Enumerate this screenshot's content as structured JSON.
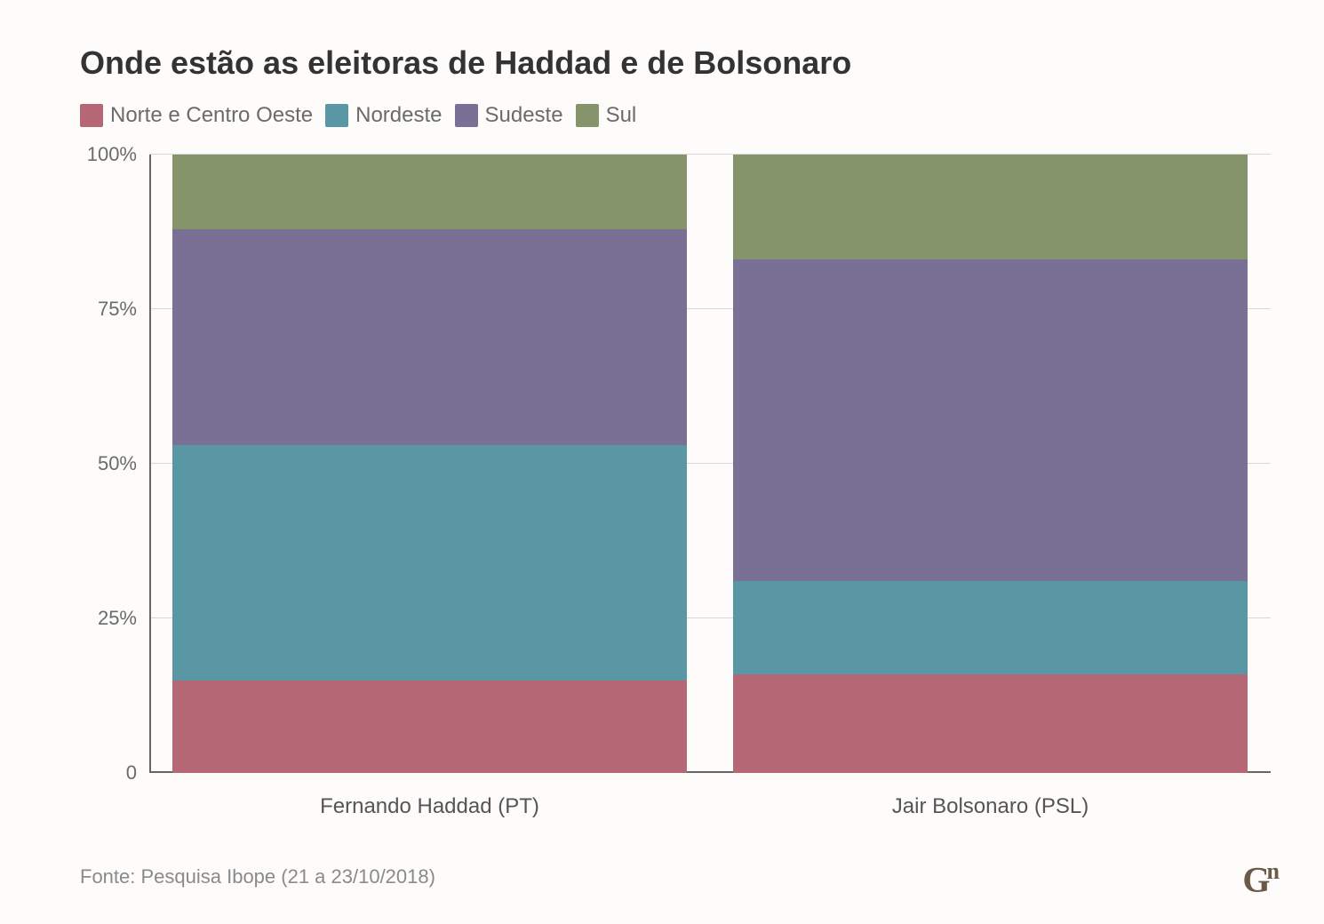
{
  "title": "Onde estão as eleitoras de Haddad e de Bolsonaro",
  "legend": [
    {
      "label": "Norte e Centro Oeste",
      "color": "#b66775"
    },
    {
      "label": "Nordeste",
      "color": "#5a97a5"
    },
    {
      "label": "Sudeste",
      "color": "#7a6f94"
    },
    {
      "label": "Sul",
      "color": "#86946b"
    }
  ],
  "chart": {
    "type": "stacked-bar-100",
    "categories": [
      "Fernando Haddad (PT)",
      "Jair Bolsonaro (PSL)"
    ],
    "series": [
      {
        "name": "Norte e Centro Oeste",
        "color": "#b66775",
        "values": [
          15,
          16
        ]
      },
      {
        "name": "Nordeste",
        "color": "#5a97a5",
        "values": [
          38,
          15
        ]
      },
      {
        "name": "Sudeste",
        "color": "#7a6f94",
        "values": [
          35,
          52
        ]
      },
      {
        "name": "Sul",
        "color": "#86946b",
        "values": [
          12,
          17
        ]
      }
    ],
    "ylim": [
      0,
      100
    ],
    "ytick_step": 25,
    "ytick_labels": [
      "0",
      "25%",
      "50%",
      "75%",
      "100%"
    ],
    "grid_color": "#d9d7d2",
    "axis_color": "#666666",
    "background_color": "#fdfcfa",
    "bar_gap_pct": 4,
    "title_fontsize": 36,
    "label_fontsize": 24,
    "tick_fontsize": 22
  },
  "footer": "Fonte: Pesquisa Ibope (21 a 23/10/2018)",
  "logo": {
    "main": "G",
    "sup": "n"
  }
}
